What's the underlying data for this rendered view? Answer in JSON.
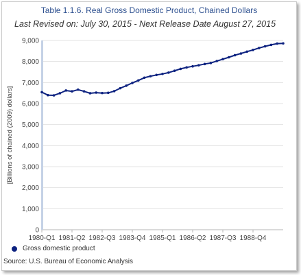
{
  "chart_data": {
    "type": "line",
    "title": "Table 1.1.6. Real Gross Domestic Product, Chained Dollars",
    "subtitle": "Last Revised on: July 30, 2015 - Next Release Date August 27, 2015",
    "ylabel": "[Billions of chained (2009) dollars]",
    "xlabel": "",
    "ylim": [
      0,
      9000
    ],
    "yticks": [
      0,
      1000,
      2000,
      3000,
      4000,
      5000,
      6000,
      7000,
      8000,
      9000
    ],
    "ytick_labels": [
      "0",
      "1,000",
      "2,000",
      "3,000",
      "4,000",
      "5,000",
      "6,000",
      "7,000",
      "8,000",
      "9,000"
    ],
    "xtick_labels": [
      {
        "label": "1980-Q1",
        "index": 0
      },
      {
        "label": "1981-Q2",
        "index": 5
      },
      {
        "label": "1982-Q3",
        "index": 10
      },
      {
        "label": "1983-Q4",
        "index": 15
      },
      {
        "label": "1985-Q1",
        "index": 20
      },
      {
        "label": "1986-Q2",
        "index": 25
      },
      {
        "label": "1987-Q3",
        "index": 30
      },
      {
        "label": "1988-Q4",
        "index": 35
      }
    ],
    "grid": true,
    "legend_position": "bottom-left",
    "series": [
      {
        "name": "Gross domestic product",
        "color": "#0d2280",
        "values": [
          6540,
          6400,
          6390,
          6490,
          6620,
          6580,
          6660,
          6580,
          6490,
          6520,
          6500,
          6510,
          6590,
          6730,
          6850,
          6980,
          7100,
          7230,
          7300,
          7360,
          7410,
          7470,
          7560,
          7650,
          7720,
          7770,
          7820,
          7880,
          7930,
          8020,
          8110,
          8200,
          8300,
          8380,
          8470,
          8550,
          8640,
          8720,
          8790,
          8850,
          8860
        ]
      }
    ]
  },
  "legend": {
    "label": "Gross domestic product"
  },
  "source": "Source: U.S. Bureau of Economic Analysis"
}
